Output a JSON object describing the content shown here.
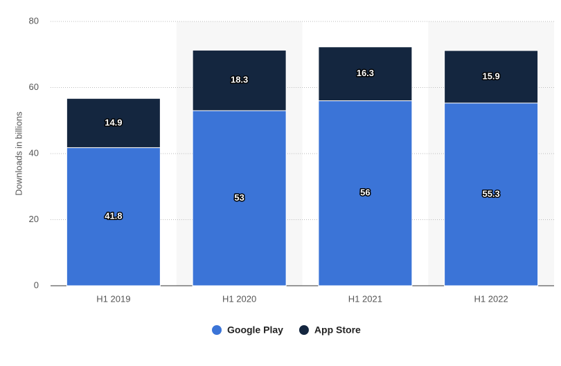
{
  "chart_data": {
    "type": "stacked_bar",
    "y_label": "Downloads in billions",
    "categories": [
      "H1 2019",
      "H1 2020",
      "H1 2021",
      "H1 2022"
    ],
    "series": [
      {
        "name": "Google Play",
        "color": "#3b74d7",
        "values": [
          41.8,
          53,
          56,
          55.3
        ]
      },
      {
        "name": "App Store",
        "color": "#14263f",
        "values": [
          14.9,
          18.3,
          16.3,
          15.9
        ]
      }
    ],
    "ylim": [
      0,
      80
    ],
    "yticks": [
      0,
      20,
      40,
      60,
      80
    ],
    "grid": true,
    "legend": "bottom"
  }
}
